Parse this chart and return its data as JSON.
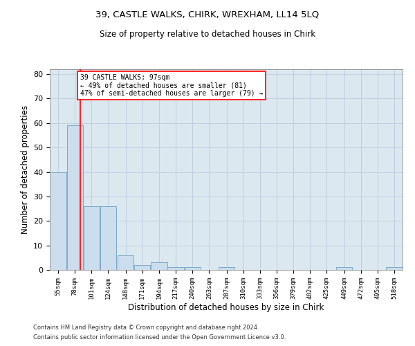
{
  "title1": "39, CASTLE WALKS, CHIRK, WREXHAM, LL14 5LQ",
  "title2": "Size of property relative to detached houses in Chirk",
  "xlabel": "Distribution of detached houses by size in Chirk",
  "ylabel": "Number of detached properties",
  "footer1": "Contains HM Land Registry data © Crown copyright and database right 2024.",
  "footer2": "Contains public sector information licensed under the Open Government Licence v3.0.",
  "annotation_title": "39 CASTLE WALKS: 97sqm",
  "annotation_line1": "← 49% of detached houses are smaller (81)",
  "annotation_line2": "47% of semi-detached houses are larger (79) →",
  "property_size": 97,
  "bar_color": "#ccdded",
  "bar_edge_color": "#7aaac8",
  "bins": [
    55,
    78,
    101,
    124,
    148,
    171,
    194,
    217,
    240,
    263,
    287,
    310,
    333,
    356,
    379,
    402,
    425,
    449,
    472,
    495,
    518
  ],
  "counts": [
    40,
    59,
    26,
    26,
    6,
    2,
    3,
    1,
    1,
    0,
    1,
    0,
    0,
    0,
    0,
    0,
    0,
    1,
    0,
    0,
    1
  ],
  "ylim": [
    0,
    82
  ],
  "yticks": [
    0,
    10,
    20,
    30,
    40,
    50,
    60,
    70,
    80
  ],
  "red_line_x": 97,
  "grid_color": "#c0cfe0",
  "background_color": "#dce8f0"
}
